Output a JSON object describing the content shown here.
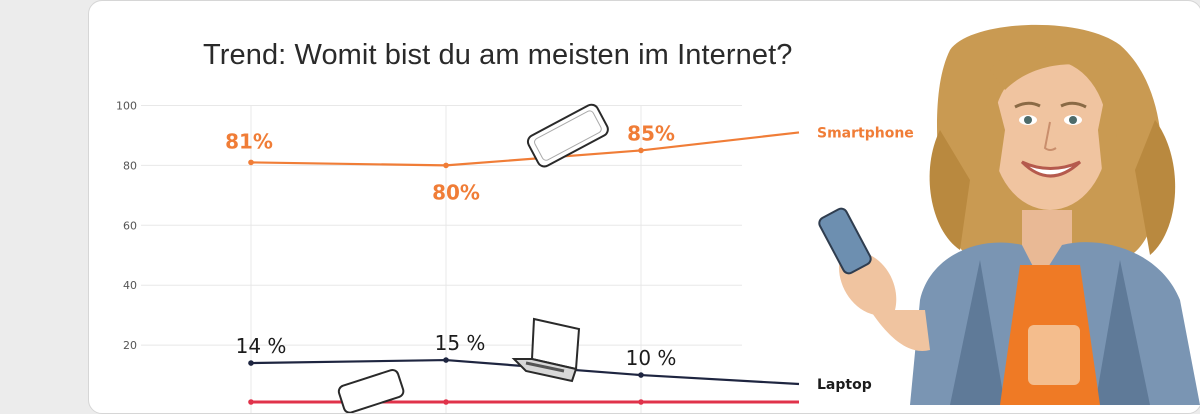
{
  "colors": {
    "smartphone": "#f07d37",
    "laptop": "#1e2540",
    "third_series": "#e0324a",
    "grid": "#e8e8e8",
    "card_border": "#d6d6d6"
  },
  "chart_data": {
    "type": "line",
    "title": "Trend: Womit bist du am meisten im Internet?",
    "ylim": [
      0,
      100
    ],
    "yticks": [
      20,
      40,
      60,
      80,
      100
    ],
    "grid": true,
    "x_count": 4,
    "series": [
      {
        "name": "Smartphone",
        "values": [
          81,
          80,
          85,
          91
        ],
        "labels": [
          "81%",
          "80%",
          "85%",
          ""
        ]
      },
      {
        "name": "Laptop",
        "values": [
          14,
          15,
          10,
          7
        ],
        "labels": [
          "14 %",
          "15 %",
          "10 %",
          ""
        ]
      },
      {
        "name": "",
        "values": [
          1,
          1,
          1,
          1
        ],
        "labels": [
          "",
          "",
          "",
          ""
        ]
      }
    ]
  },
  "decor": {
    "icons": [
      "smartphone-icon",
      "laptop-icon",
      "smartphone-icon"
    ],
    "photo": "woman-holding-smartphone"
  }
}
